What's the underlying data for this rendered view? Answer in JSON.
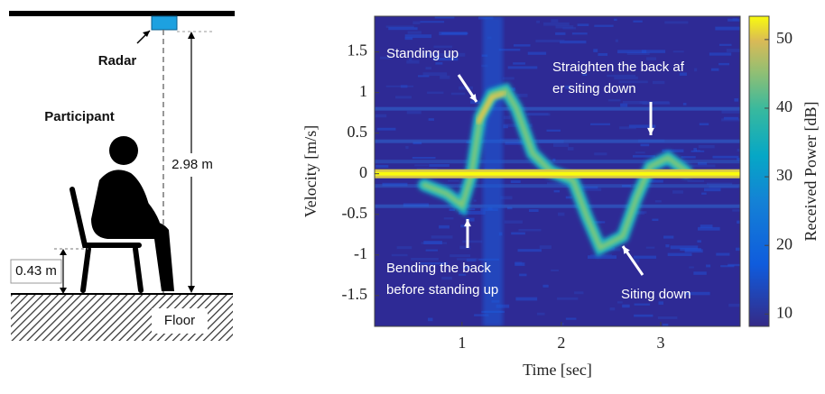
{
  "diagram": {
    "radar": "Radar",
    "participant": "Participant",
    "height": "2.98 m",
    "seat_height": "0.43 m",
    "floor": "Floor"
  },
  "chart_data": {
    "type": "heatmap",
    "x_label": "Time [sec]",
    "y_label": "Velocity [m/s]",
    "xlim": [
      0.12,
      3.8
    ],
    "xticks": [
      1,
      2,
      3
    ],
    "ylim": [
      -1.88,
      1.94
    ],
    "yticks": [
      1.5,
      1,
      0.5,
      0,
      -0.5,
      -1,
      -1.5
    ],
    "colorbar": {
      "label": "Received Power [dB]",
      "lim": [
        8.2,
        53.4
      ],
      "ticks": [
        10,
        20,
        30,
        40,
        50
      ]
    },
    "annotations": [
      "Standing up",
      "Straighten the back after siting down",
      "Bending the back before standing up",
      "Siting down"
    ]
  }
}
